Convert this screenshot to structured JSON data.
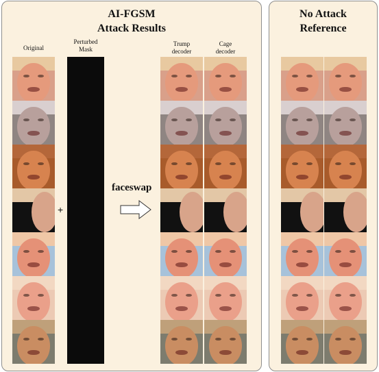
{
  "left_panel": {
    "title_line1": "AI-FGSM",
    "title_line2": "Attack Results",
    "col_original": "Original",
    "col_mask": "Perturbed\nMask",
    "col_trump": "Trump\ndecoder",
    "col_cage": "Cage\ndecoder",
    "plus": "+",
    "faceswap": "faceswap"
  },
  "right_panel": {
    "title_line1": "No Attack",
    "title_line2": "Reference"
  },
  "rows": [
    {
      "skin": "#e59a7c",
      "hair": "#e8c9a0",
      "bg": "#d9a08a",
      "dark": false
    },
    {
      "skin": "#b8a09c",
      "hair": "#d9cfcf",
      "bg": "#8f8582",
      "dark": false
    },
    {
      "skin": "#d7834f",
      "hair": "#b4673a",
      "bg": "#a85b2b",
      "dark": false
    },
    {
      "skin": "#d8a48a",
      "hair": "#e3c7a6",
      "bg": "#111111",
      "dark": true
    },
    {
      "skin": "#e59177",
      "hair": "#efc7a6",
      "bg": "#a7c2da",
      "dark": false
    },
    {
      "skin": "#eaa08a",
      "hair": "#f2d8c2",
      "bg": "#eccab4",
      "dark": false
    },
    {
      "skin": "#c98d62",
      "hair": "#bfa07a",
      "bg": "#7d7c6e",
      "dark": false
    }
  ],
  "colors": {
    "panel_bg": "#fbf1df",
    "panel_border": "#8d8d8d",
    "mask": "#0b0b0b"
  }
}
